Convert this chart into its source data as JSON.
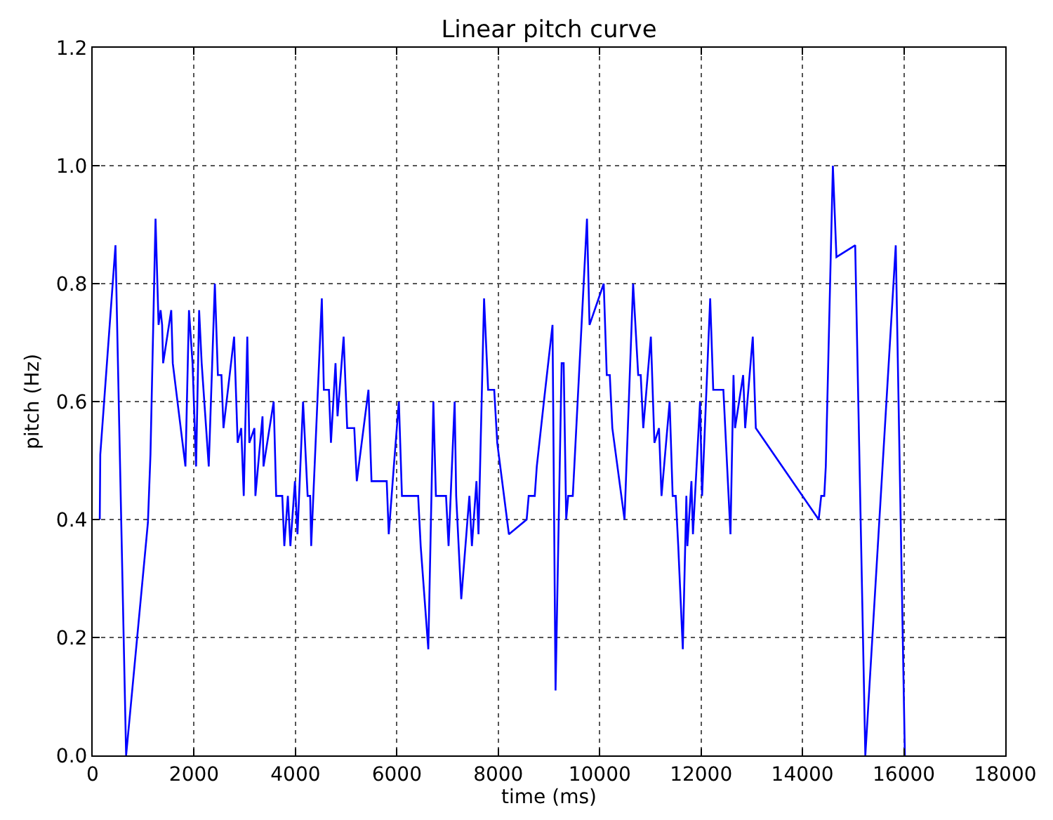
{
  "chart_data": {
    "type": "line",
    "title": "Linear pitch curve",
    "xlabel": "time (ms)",
    "ylabel": "pitch (Hz)",
    "x": [
      140,
      150,
      450,
      660,
      1090,
      1140,
      1240,
      1300,
      1340,
      1370,
      1390,
      1550,
      1580,
      1830,
      1900,
      1970,
      2040,
      2100,
      2150,
      2290,
      2410,
      2470,
      2540,
      2580,
      2790,
      2860,
      2930,
      2980,
      3050,
      3090,
      3190,
      3210,
      3350,
      3370,
      3570,
      3620,
      3740,
      3780,
      3850,
      3900,
      3990,
      4040,
      4150,
      4240,
      4290,
      4310,
      4520,
      4560,
      4660,
      4700,
      4790,
      4830,
      4950,
      5020,
      5160,
      5210,
      5440,
      5500,
      5800,
      5840,
      5940,
      6040,
      6100,
      6420,
      6470,
      6620,
      6720,
      6770,
      6970,
      7020,
      7140,
      7170,
      7270,
      7430,
      7480,
      7570,
      7610,
      7720,
      7800,
      7920,
      7980,
      8210,
      8560,
      8600,
      8720,
      8760,
      8900,
      9070,
      9130,
      9250,
      9290,
      9340,
      9380,
      9470,
      9500,
      9750,
      9800,
      10080,
      10140,
      10200,
      10250,
      10490,
      10660,
      10760,
      10810,
      10860,
      11010,
      11080,
      11170,
      11220,
      11380,
      11440,
      11500,
      11550,
      11640,
      11710,
      11730,
      11810,
      11840,
      11980,
      12020,
      12180,
      12240,
      12440,
      12580,
      12640,
      12670,
      12830,
      12870,
      13020,
      13080,
      14320,
      14370,
      14430,
      14460,
      14600,
      14670,
      15040,
      15240,
      15840,
      16020
    ],
    "series": [
      {
        "color": "#0000ff",
        "values": [
          0.4,
          0.51,
          0.865,
          0,
          0.395,
          0.51,
          0.91,
          0.73,
          0.755,
          0.73,
          0.665,
          0.755,
          0.665,
          0.49,
          0.755,
          0.665,
          0.49,
          0.755,
          0.665,
          0.49,
          0.8,
          0.645,
          0.645,
          0.555,
          0.71,
          0.53,
          0.555,
          0.44,
          0.71,
          0.53,
          0.555,
          0.44,
          0.575,
          0.49,
          0.6,
          0.44,
          0.44,
          0.355,
          0.44,
          0.355,
          0.465,
          0.375,
          0.6,
          0.44,
          0.44,
          0.355,
          0.775,
          0.62,
          0.62,
          0.53,
          0.665,
          0.575,
          0.71,
          0.555,
          0.555,
          0.465,
          0.62,
          0.465,
          0.465,
          0.375,
          0.49,
          0.6,
          0.44,
          0.44,
          0.355,
          0.18,
          0.6,
          0.44,
          0.44,
          0.355,
          0.6,
          0.44,
          0.265,
          0.44,
          0.355,
          0.465,
          0.375,
          0.775,
          0.62,
          0.62,
          0.53,
          0.375,
          0.4,
          0.44,
          0.44,
          0.49,
          0.6,
          0.73,
          0.11,
          0.665,
          0.665,
          0.4,
          0.44,
          0.44,
          0.49,
          0.91,
          0.73,
          0.8,
          0.645,
          0.645,
          0.555,
          0.4,
          0.8,
          0.645,
          0.645,
          0.555,
          0.71,
          0.53,
          0.555,
          0.44,
          0.6,
          0.44,
          0.44,
          0.355,
          0.18,
          0.44,
          0.355,
          0.465,
          0.375,
          0.6,
          0.44,
          0.775,
          0.62,
          0.62,
          0.375,
          0.645,
          0.555,
          0.645,
          0.555,
          0.71,
          0.555,
          0.4,
          0.44,
          0.44,
          0.49,
          1.0,
          0.845,
          0.865,
          0,
          0.865,
          0
        ]
      }
    ],
    "xlim": [
      0,
      18000
    ],
    "xticks": [
      0,
      2000,
      4000,
      6000,
      8000,
      10000,
      12000,
      14000,
      16000,
      18000
    ],
    "ylim": [
      0,
      1.2
    ],
    "yticks": [
      {
        "value": 0,
        "label": "0.0"
      },
      0.2,
      0.4,
      0.6,
      0.8,
      {
        "value": 1,
        "label": "1.0"
      },
      1.2
    ],
    "grid": true,
    "line_style": "solid"
  }
}
